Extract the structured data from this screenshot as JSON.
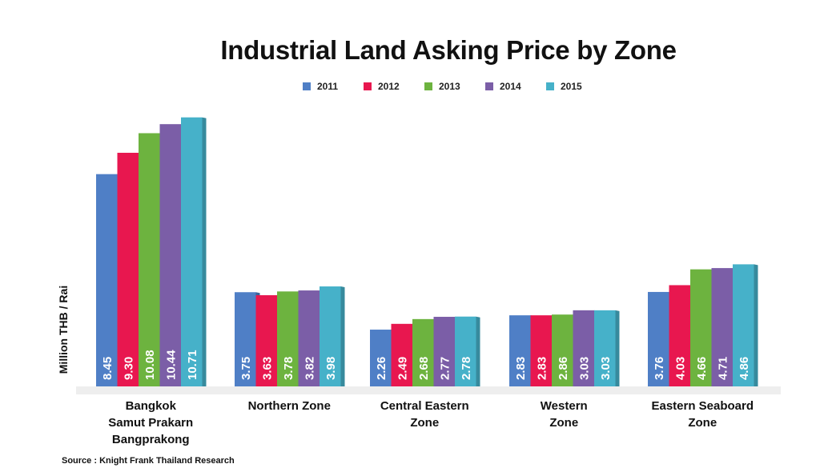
{
  "chart_data": {
    "type": "bar",
    "title": "Industrial Land Asking Price by Zone",
    "ylabel": "Million THB / Rai",
    "xlabel": "",
    "ylim": [
      0,
      12
    ],
    "grid": false,
    "legend_position": "top-center",
    "categories": [
      [
        "Bangkok",
        "Samut Prakarn",
        "Bangprakong"
      ],
      [
        "Northern Zone"
      ],
      [
        "Central Eastern",
        "Zone"
      ],
      [
        "Western",
        "Zone"
      ],
      [
        "Eastern Seaboard",
        "Zone"
      ]
    ],
    "series": [
      {
        "name": "2011",
        "color": "#4f7fc6",
        "values": [
          8.45,
          3.75,
          2.26,
          2.83,
          3.76
        ]
      },
      {
        "name": "2012",
        "color": "#e8174f",
        "values": [
          9.3,
          3.63,
          2.49,
          2.83,
          4.03
        ]
      },
      {
        "name": "2013",
        "color": "#6db33f",
        "values": [
          10.08,
          3.78,
          2.68,
          2.86,
          4.66
        ]
      },
      {
        "name": "2014",
        "color": "#7b5ea7",
        "values": [
          10.44,
          3.82,
          2.77,
          3.03,
          4.71
        ]
      },
      {
        "name": "2015",
        "color": "#46b1c9",
        "values": [
          10.71,
          3.98,
          2.78,
          3.03,
          4.86
        ]
      }
    ],
    "data_labels": [
      [
        "8.45",
        "9.30",
        "10.08",
        "10.44",
        "10.71"
      ],
      [
        "3.75",
        "3.63",
        "3.78",
        "3.82",
        "3.98"
      ],
      [
        "2.26",
        "2.49",
        "2.68",
        "2.77",
        "2.78"
      ],
      [
        "2.83",
        "2.83",
        "2.86",
        "3.03",
        "3.03"
      ],
      [
        "3.76",
        "4.03",
        "4.66",
        "4.71",
        "4.86"
      ]
    ]
  },
  "source": "Source : Knight Frank Thailand Research"
}
